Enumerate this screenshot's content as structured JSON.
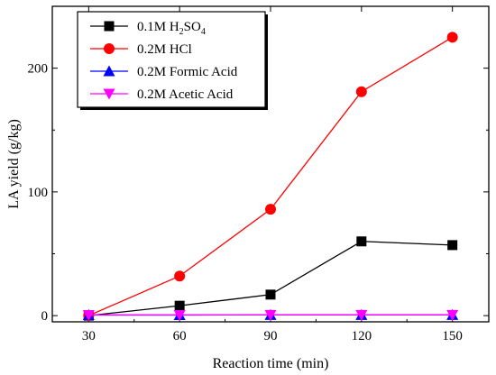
{
  "chart_data": {
    "type": "line",
    "xlabel": "Reaction time (min)",
    "ylabel": "LA yield (g/kg)",
    "x": [
      30,
      60,
      90,
      120,
      150
    ],
    "xlim": [
      18,
      162
    ],
    "ylim": [
      -5,
      250
    ],
    "x_ticks": [
      30,
      60,
      90,
      120,
      150
    ],
    "y_ticks": [
      0,
      100,
      200
    ],
    "grid": false,
    "legend_position": "top-left",
    "series": [
      {
        "name": "0.1M H2SO4",
        "label_parts": [
          [
            "0.1M H",
            ""
          ],
          [
            "2",
            "sub"
          ],
          [
            "SO",
            ""
          ],
          [
            "4",
            "sub"
          ]
        ],
        "values": [
          0,
          8,
          17,
          60,
          57
        ],
        "color": "#000000",
        "marker": "square"
      },
      {
        "name": "0.2M HCl",
        "label_parts": [
          [
            "0.2M HCl",
            ""
          ]
        ],
        "values": [
          0,
          32,
          86,
          181,
          225
        ],
        "color": "#ff0000",
        "marker": "circle"
      },
      {
        "name": "0.2M Formic Acid",
        "label_parts": [
          [
            "0.2M Formic Acid",
            ""
          ]
        ],
        "values": [
          0.5,
          0.5,
          0.6,
          0.6,
          0.6
        ],
        "color": "#0000ff",
        "marker": "triangle-up"
      },
      {
        "name": "0.2M Acetic Acid",
        "label_parts": [
          [
            "0.2M Acetic Acid",
            ""
          ]
        ],
        "values": [
          0.5,
          0.5,
          0.6,
          0.6,
          0.6
        ],
        "color": "#ff00ff",
        "marker": "triangle-down"
      }
    ]
  }
}
